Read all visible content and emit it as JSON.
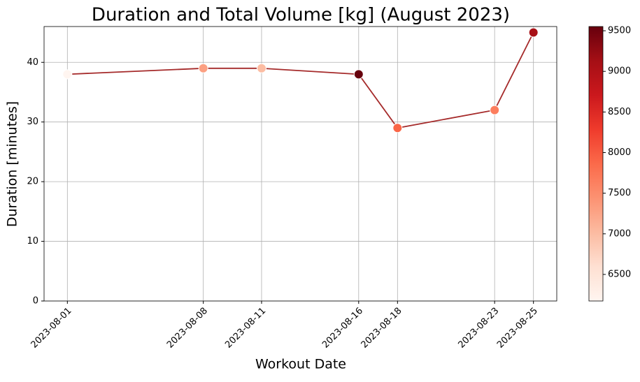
{
  "chart_data": {
    "type": "line",
    "title": "Duration and Total Volume [kg] (August 2023)",
    "x_label": "Workout Date",
    "y_label": "Duration [minutes]",
    "x": [
      "2023-08-01",
      "2023-08-08",
      "2023-08-11",
      "2023-08-16",
      "2023-08-18",
      "2023-08-23",
      "2023-08-25"
    ],
    "values": [
      38,
      39,
      39,
      38,
      29,
      32,
      45
    ],
    "volumes": [
      6173,
      7300,
      7000,
      9552,
      7900,
      7650,
      9100
    ],
    "line_color": "#a52a2a",
    "cmap": "Reds",
    "xlim": [
      "2023-07-30T19:12",
      "2023-08-26T04:48"
    ],
    "ylim": [
      0,
      46
    ],
    "yticks": [
      0,
      10,
      20,
      30,
      40
    ],
    "clim": [
      6173,
      9552
    ],
    "cticks": [
      6500,
      7000,
      7500,
      8000,
      8500,
      9000,
      9500
    ],
    "grid": true
  }
}
